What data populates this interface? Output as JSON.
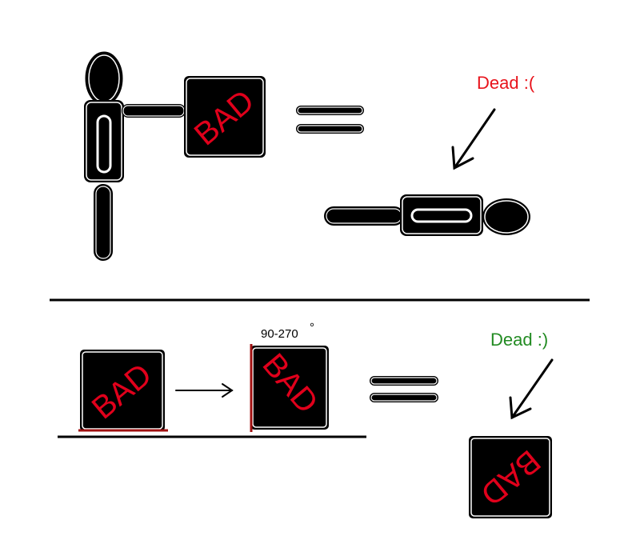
{
  "diagram": {
    "top_panel": {
      "box_label": "BAD",
      "annotation": "Dead :(",
      "annotation_color": "#e8141c"
    },
    "bottom_panel": {
      "box_label_before": "BAD",
      "box_label_after": "BAD",
      "rotation_label": "90-270",
      "degree_symbol": "°",
      "annotation": "Dead :)",
      "annotation_color": "#228b22",
      "result_box_label": "BAD"
    },
    "colors": {
      "outline": "#000000",
      "box_fill": "#000000",
      "bad_text": "#e0001b",
      "floor_contact": "#a01010"
    }
  }
}
